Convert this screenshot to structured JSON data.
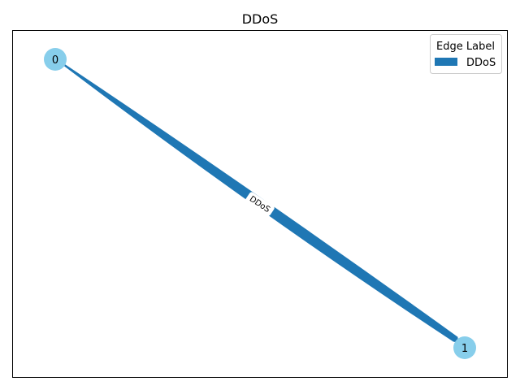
{
  "title": "DDoS",
  "colors": {
    "node_fill": "#87ceeb",
    "edge_color": "#1f77b4",
    "axes_border": "#000000",
    "background": "#ffffff"
  },
  "graph": {
    "directed": true,
    "nodes": [
      {
        "id": "0",
        "label": "0"
      },
      {
        "id": "1",
        "label": "1"
      }
    ],
    "edges": [
      {
        "source": "0",
        "target": "1",
        "label": "DDoS",
        "style": "thick arrow"
      }
    ]
  },
  "legend": {
    "title": "Edge Label",
    "entries": [
      {
        "label": "DDoS",
        "color": "#1f77b4"
      }
    ],
    "placement": "top-right"
  }
}
